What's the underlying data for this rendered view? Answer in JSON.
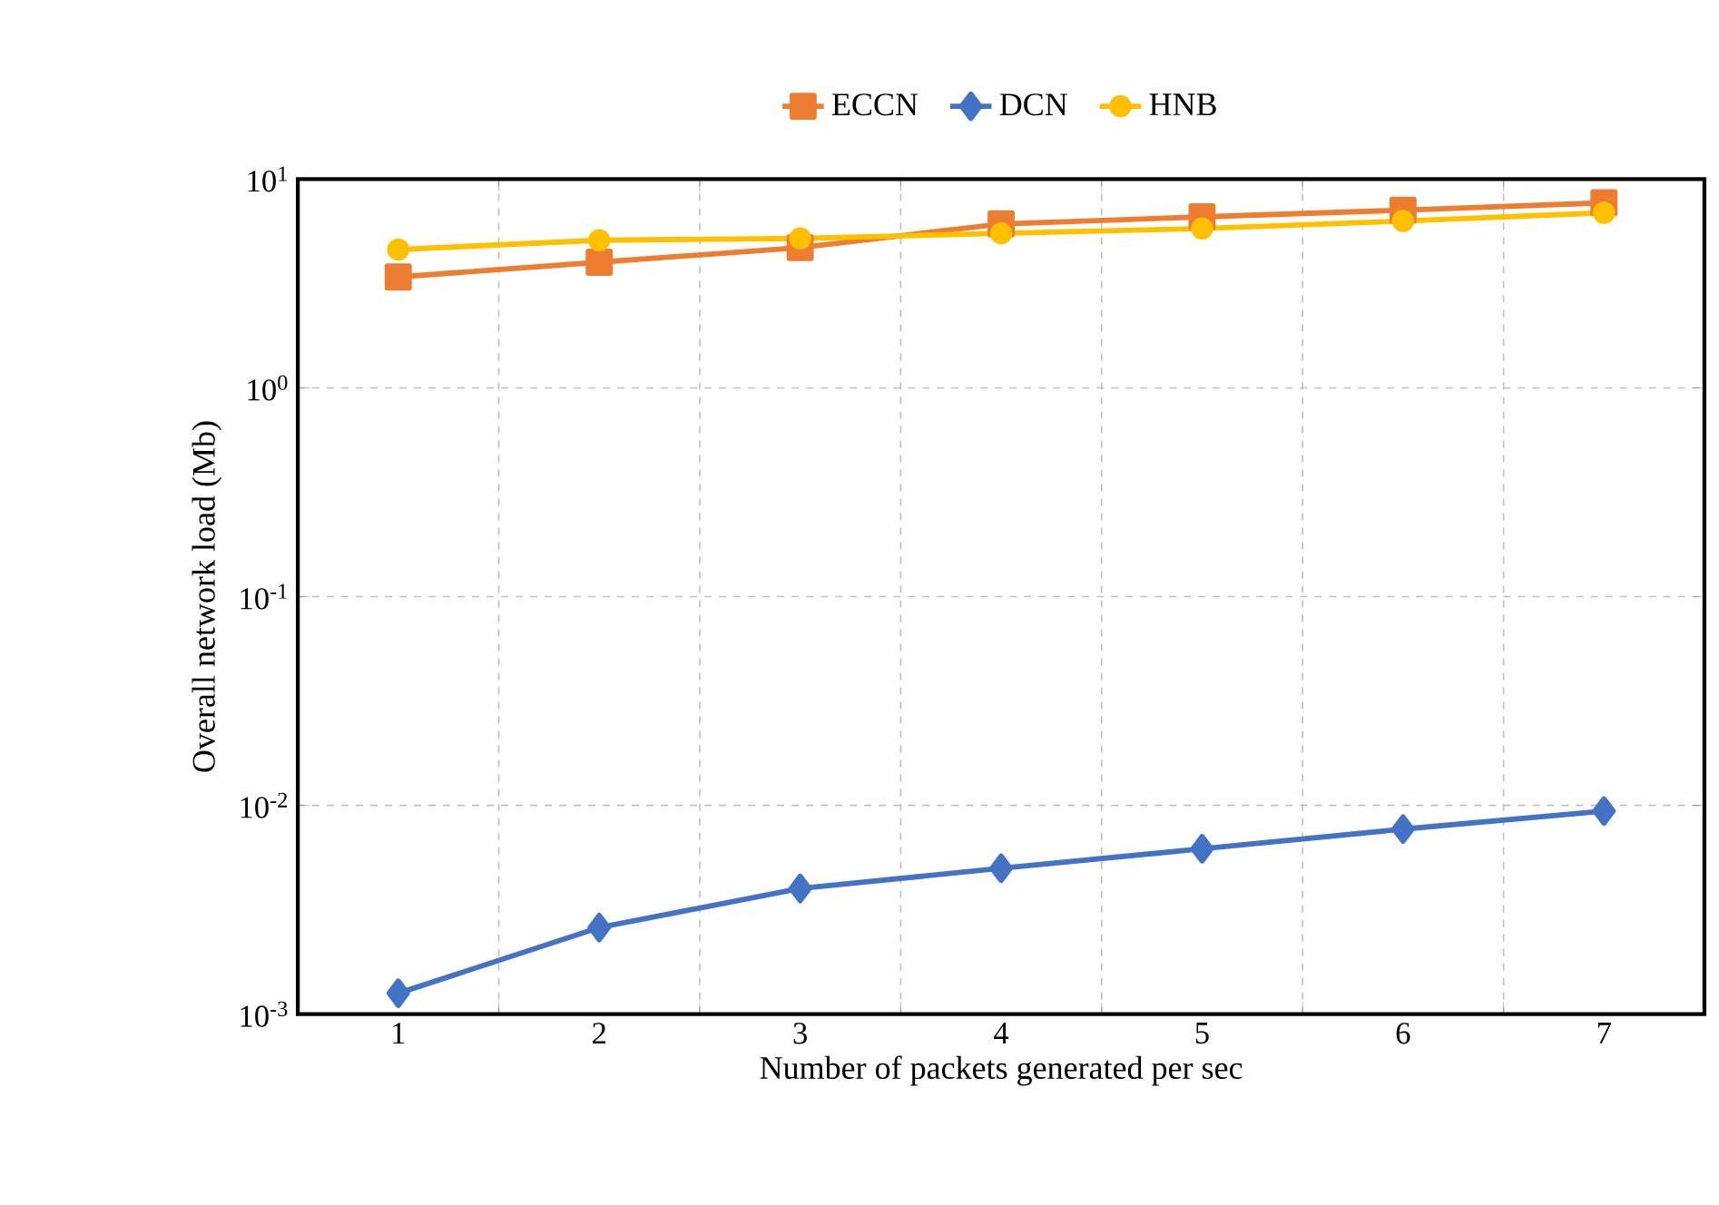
{
  "chart_data": {
    "type": "line",
    "xlabel": "Number of packets generated per sec",
    "ylabel": "Overall network load (Mb)",
    "categories": [
      "1",
      "2",
      "3",
      "4",
      "5",
      "6",
      "7"
    ],
    "series": [
      {
        "name": "ECCN",
        "color": "#ed7d31",
        "marker": "square",
        "values": [
          3.4,
          4.0,
          4.7,
          6.1,
          6.6,
          7.1,
          7.7
        ]
      },
      {
        "name": "DCN",
        "color": "#4472c4",
        "marker": "diamond",
        "values": [
          0.00126,
          0.0026,
          0.004,
          0.005,
          0.0062,
          0.0077,
          0.0094
        ]
      },
      {
        "name": "HNB",
        "color": "#ffc000",
        "marker": "circle",
        "values": [
          4.6,
          5.1,
          5.2,
          5.5,
          5.8,
          6.3,
          6.9
        ]
      }
    ],
    "log": "y",
    "ylim": [
      0.001,
      10
    ],
    "yticks": [
      {
        "value": 0.001,
        "label": "10$^{-3}$"
      },
      {
        "value": 0.01,
        "label": "10$^{-2}$"
      },
      {
        "value": 0.1,
        "label": "10$^{-1}$"
      },
      {
        "value": 1,
        "label": "10$^{0}$"
      },
      {
        "value": 10,
        "label": "10$^{1}$"
      }
    ],
    "grid": true,
    "legend": "top",
    "line_style": "solid"
  }
}
